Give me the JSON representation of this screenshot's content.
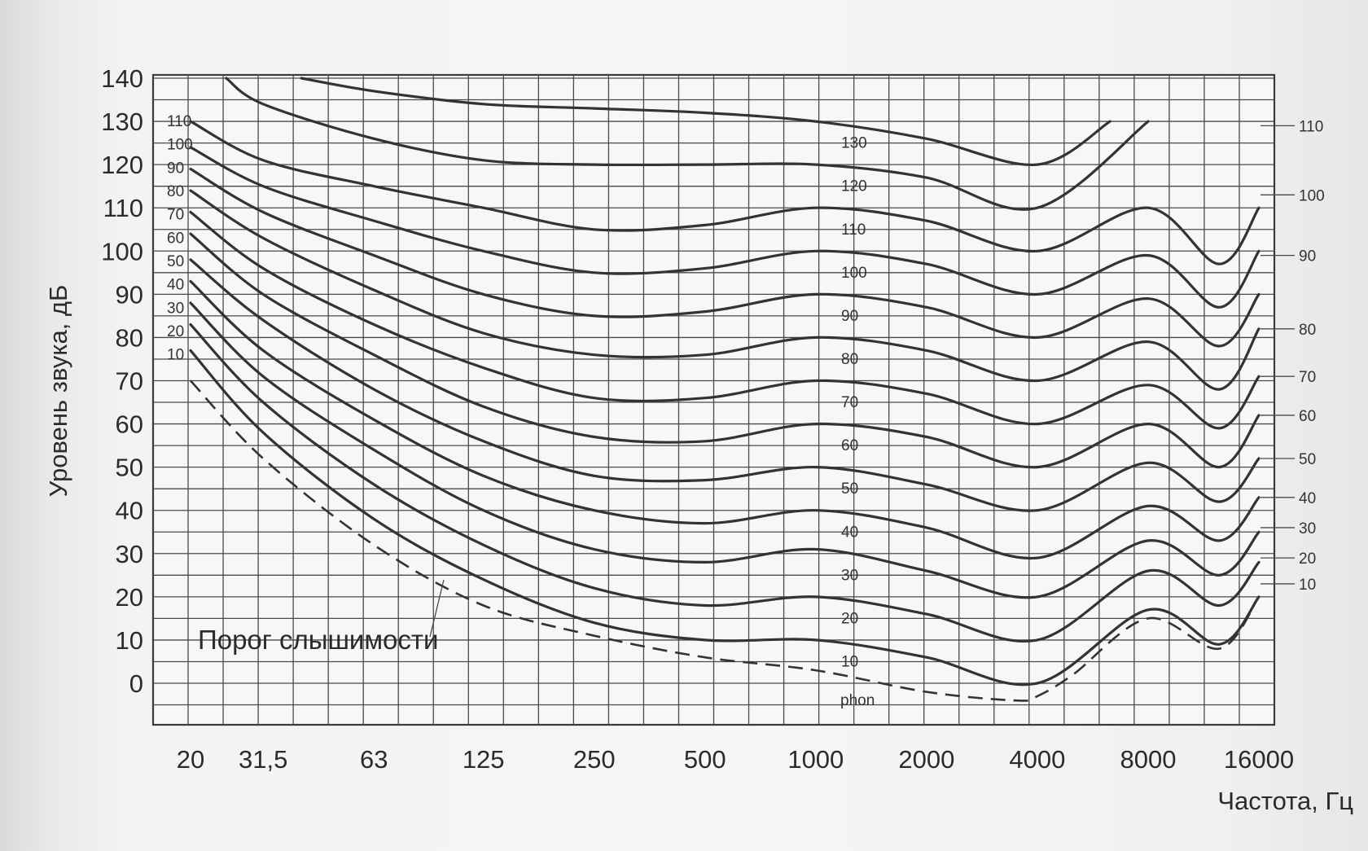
{
  "chart_data": {
    "type": "line",
    "title": "",
    "xlabel": "Частота, Гц",
    "ylabel": "Уровень звука, дБ",
    "x_scale": "log",
    "x_ticks": [
      "20",
      "31,5",
      "63",
      "125",
      "250",
      "500",
      "1000",
      "2000",
      "4000",
      "8000",
      "16000"
    ],
    "y_ticks": [
      "0",
      "10",
      "20",
      "30",
      "40",
      "50",
      "60",
      "70",
      "80",
      "90",
      "100",
      "110",
      "120",
      "130",
      "140"
    ],
    "ylim": [
      -10,
      140
    ],
    "grid": true,
    "annotation_threshold": "Порог слышимости",
    "annotation_unit": "phon",
    "left_labels": [
      "10",
      "20",
      "30",
      "40",
      "50",
      "60",
      "70",
      "80",
      "90",
      "100",
      "110"
    ],
    "mid_labels": [
      "10",
      "20",
      "30",
      "40",
      "50",
      "60",
      "70",
      "80",
      "90",
      "100",
      "110",
      "120",
      "130"
    ],
    "right_labels": [
      "10",
      "20",
      "30",
      "40",
      "50",
      "60",
      "70",
      "80",
      "90",
      "100",
      "110"
    ],
    "series": [
      {
        "name": "Порог слышимости",
        "dashed": true,
        "x": [
          20,
          31.5,
          63,
          125,
          250,
          500,
          1000,
          2000,
          3500,
          4000,
          5000,
          8000,
          12500,
          16000
        ],
        "y": [
          70,
          52,
          32,
          18,
          11,
          6,
          3,
          -2,
          -4,
          -3,
          2,
          15,
          8,
          20
        ]
      },
      {
        "name": "10",
        "x": [
          20,
          31.5,
          63,
          125,
          250,
          500,
          1000,
          2000,
          4000,
          8000,
          12500,
          16000
        ],
        "y": [
          77,
          58,
          38,
          24,
          14,
          10,
          10,
          6,
          0,
          17,
          9,
          20
        ]
      },
      {
        "name": "20",
        "x": [
          20,
          31.5,
          63,
          125,
          250,
          500,
          1000,
          2000,
          4000,
          8000,
          12500,
          16000
        ],
        "y": [
          83,
          65,
          46,
          32,
          22,
          18,
          20,
          16,
          10,
          26,
          18,
          28
        ]
      },
      {
        "name": "30",
        "x": [
          20,
          31.5,
          63,
          125,
          250,
          500,
          1000,
          2000,
          4000,
          8000,
          12500,
          16000
        ],
        "y": [
          88,
          71,
          54,
          40,
          31,
          28,
          31,
          26,
          20,
          33,
          25,
          35
        ]
      },
      {
        "name": "40",
        "x": [
          20,
          31.5,
          63,
          125,
          250,
          500,
          1000,
          2000,
          4000,
          8000,
          12500,
          16000
        ],
        "y": [
          93,
          77,
          61,
          48,
          40,
          37,
          40,
          36,
          29,
          41,
          33,
          43
        ]
      },
      {
        "name": "50",
        "x": [
          20,
          31.5,
          63,
          125,
          250,
          500,
          1000,
          2000,
          4000,
          8000,
          12500,
          16000
        ],
        "y": [
          98,
          84,
          68,
          56,
          48,
          47,
          50,
          46,
          40,
          51,
          42,
          52
        ]
      },
      {
        "name": "60",
        "x": [
          20,
          31.5,
          63,
          125,
          250,
          500,
          1000,
          2000,
          4000,
          8000,
          12500,
          16000
        ],
        "y": [
          104,
          90,
          76,
          64,
          57,
          56,
          60,
          57,
          50,
          60,
          50,
          62
        ]
      },
      {
        "name": "70",
        "x": [
          20,
          31.5,
          63,
          125,
          250,
          500,
          1000,
          2000,
          4000,
          8000,
          12500,
          16000
        ],
        "y": [
          109,
          96,
          83,
          73,
          66,
          66,
          70,
          67,
          60,
          69,
          59,
          71
        ]
      },
      {
        "name": "80",
        "x": [
          20,
          31.5,
          63,
          125,
          250,
          500,
          1000,
          2000,
          4000,
          8000,
          12500,
          16000
        ],
        "y": [
          114,
          103,
          91,
          81,
          76,
          76,
          80,
          77,
          70,
          79,
          68,
          82
        ]
      },
      {
        "name": "90",
        "x": [
          20,
          31.5,
          63,
          125,
          250,
          500,
          1000,
          2000,
          4000,
          8000,
          12500,
          16000
        ],
        "y": [
          119,
          109,
          99,
          90,
          85,
          86,
          90,
          87,
          80,
          89,
          78,
          90
        ]
      },
      {
        "name": "100",
        "x": [
          20,
          31.5,
          63,
          125,
          250,
          500,
          1000,
          2000,
          4000,
          8000,
          12500,
          16000
        ],
        "y": [
          124,
          115,
          107,
          100,
          95,
          96,
          100,
          97,
          90,
          99,
          87,
          100
        ]
      },
      {
        "name": "110",
        "x": [
          20,
          31.5,
          63,
          125,
          250,
          500,
          1000,
          2000,
          4000,
          8000,
          12500,
          16000
        ],
        "y": [
          130,
          121,
          115,
          110,
          105,
          106,
          110,
          107,
          100,
          110,
          97,
          110
        ]
      },
      {
        "name": "120",
        "x": [
          25,
          31.5,
          63,
          125,
          250,
          500,
          1000,
          2000,
          4000,
          8000
        ],
        "y": [
          140,
          134,
          126,
          121,
          120,
          120,
          120,
          117,
          110,
          130
        ]
      },
      {
        "name": "130",
        "x": [
          40,
          63,
          125,
          250,
          500,
          1000,
          2000,
          4000,
          6300
        ],
        "y": [
          140,
          137,
          134,
          133,
          132,
          130,
          126,
          120,
          130
        ]
      }
    ]
  }
}
